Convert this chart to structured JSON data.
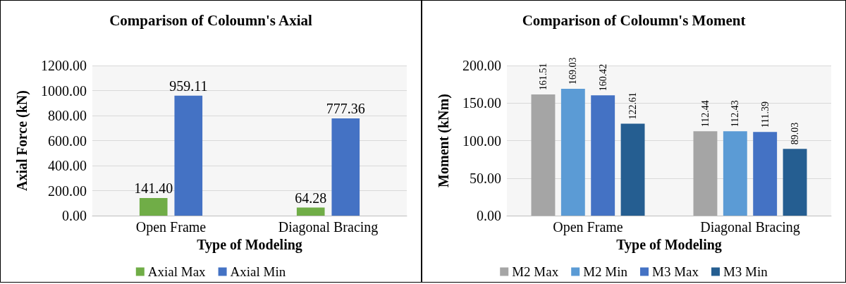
{
  "chart_data": [
    {
      "type": "bar",
      "title": "Comparison of Coloumn's Axial",
      "xlabel": "Type of Modeling",
      "ylabel": "Axial Force (kN)",
      "categories": [
        "Open Frame",
        "Diagonal Bracing"
      ],
      "series": [
        {
          "name": "Axial Max",
          "color": "#70ad47",
          "values": [
            141.4,
            64.28
          ],
          "value_labels": [
            "141.40",
            "64.28"
          ]
        },
        {
          "name": "Axial Min",
          "color": "#4472c4",
          "values": [
            959.11,
            777.36
          ],
          "value_labels": [
            "959.11",
            "777.36"
          ]
        }
      ],
      "ylim": [
        0,
        1200
      ],
      "yticks": [
        {
          "value": 0,
          "label": "0.00"
        },
        {
          "value": 200,
          "label": "200.00"
        },
        {
          "value": 400,
          "label": "400.00"
        },
        {
          "value": 600,
          "label": "600.00"
        },
        {
          "value": 800,
          "label": "800.00"
        },
        {
          "value": 1000,
          "label": "1000.00"
        },
        {
          "value": 1200,
          "label": "1200.00"
        }
      ],
      "grid": "y",
      "legend": "bottom"
    },
    {
      "type": "bar",
      "title": "Comparison of Coloumn's Moment",
      "xlabel": "Type of Modeling",
      "ylabel": "Moment (kNm)",
      "categories": [
        "Open Frame",
        "Diagonal Bracing"
      ],
      "series": [
        {
          "name": "M2 Max",
          "color": "#a5a5a5",
          "values": [
            161.51,
            112.44
          ],
          "value_labels": [
            "161.51",
            "112.44"
          ]
        },
        {
          "name": "M2 Min",
          "color": "#5b9bd5",
          "values": [
            169.03,
            112.43
          ],
          "value_labels": [
            "169.03",
            "112.43"
          ]
        },
        {
          "name": "M3 Max",
          "color": "#4472c4",
          "values": [
            160.42,
            111.39
          ],
          "value_labels": [
            "160.42",
            "111.39"
          ]
        },
        {
          "name": "M3 Min",
          "color": "#255e91",
          "values": [
            122.61,
            89.03
          ],
          "value_labels": [
            "122.61",
            "89.03"
          ]
        }
      ],
      "ylim": [
        0,
        200
      ],
      "yticks": [
        {
          "value": 0,
          "label": "0.00"
        },
        {
          "value": 50,
          "label": "50.00"
        },
        {
          "value": 100,
          "label": "100.00"
        },
        {
          "value": 150,
          "label": "150.00"
        },
        {
          "value": 200,
          "label": "200.00"
        }
      ],
      "grid": "y",
      "legend": "bottom"
    }
  ]
}
